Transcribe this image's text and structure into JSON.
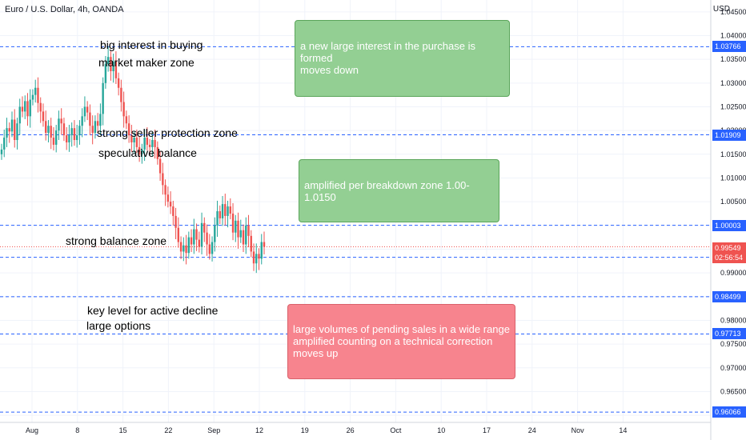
{
  "header": {
    "title": "Euro / U.S. Dollar, 4h, OANDA",
    "currency": "USD"
  },
  "chart_data": {
    "type": "candlestick",
    "symbol": "EURUSD",
    "ylim": [
      0.9585,
      1.0475
    ],
    "y_ticks": [
      "1.04500",
      "1.04000",
      "1.03500",
      "1.03000",
      "1.02500",
      "1.02000",
      "1.01500",
      "1.01000",
      "1.00500",
      "1.00000",
      "0.99500",
      "0.99000",
      "0.98500",
      "0.98000",
      "0.97500",
      "0.97000",
      "0.96500",
      "0.96000"
    ],
    "x_ticks": [
      "Aug",
      "8",
      "15",
      "22",
      "Sep",
      "12",
      "19",
      "26",
      "Oct",
      "10",
      "17",
      "24",
      "Nov",
      "14"
    ],
    "levels": [
      {
        "value": 1.03766,
        "label": "1.03766"
      },
      {
        "value": 1.01909,
        "label": "1.01909"
      },
      {
        "value": 1.00003,
        "label": "1.00003"
      },
      {
        "value": 0.99329,
        "label": "0.99329"
      },
      {
        "value": 0.98499,
        "label": "0.98499"
      },
      {
        "value": 0.97713,
        "label": "0.97713"
      },
      {
        "value": 0.96066,
        "label": "0.96066"
      }
    ],
    "last_price": {
      "value": 0.99549,
      "label": "0.99549",
      "countdown": "02:56:54"
    },
    "candle_closes": [
      1.016,
      1.0185,
      1.0205,
      1.0198,
      1.0223,
      1.018,
      1.0215,
      1.025,
      1.024,
      1.0262,
      1.023,
      1.0265,
      1.0275,
      1.029,
      1.0258,
      1.024,
      1.022,
      1.0195,
      1.021,
      1.0185,
      1.017,
      1.02,
      1.0225,
      1.0215,
      1.019,
      1.0175,
      1.019,
      1.0205,
      1.018,
      1.019,
      1.021,
      1.023,
      1.025,
      1.0238,
      1.021,
      1.0195,
      1.022,
      1.021,
      1.0235,
      1.03,
      1.034,
      1.0355,
      1.0325,
      1.0345,
      1.031,
      1.029,
      1.026,
      1.023,
      1.0215,
      1.019,
      1.0175,
      1.0185,
      1.0165,
      1.015,
      1.016,
      1.0185,
      1.017,
      1.0165,
      1.018,
      1.0165,
      1.014,
      1.011,
      1.0085,
      1.0065,
      1.005,
      1.004,
      1.002,
      0.9995,
      0.9965,
      0.9945,
      0.9958,
      0.9942,
      0.9975,
      0.996,
      0.9992,
      0.997,
      0.9955,
      1.0005,
      0.9985,
      0.996,
      0.994,
      0.9965,
      1.0,
      1.003,
      1.0015,
      1.0045,
      1.002,
      1.004,
      1.0025,
      0.9985,
      1.001,
      0.9975,
      0.999,
      0.996,
      1.0,
      0.9978,
      0.9945,
      0.992,
      0.994,
      0.993,
      0.9965,
      0.9955
    ]
  },
  "annotations": {
    "big_interest": "big interest in buying",
    "market_maker": "market maker zone",
    "seller_protection": "strong seller protection zone",
    "speculative": "speculative balance",
    "strong_balance": "strong balance zone",
    "key_level": "key level for active decline",
    "large_options": "large options"
  },
  "notes": {
    "purchase_1": "a new large interest in the purchase is formed",
    "purchase_2": "moves down",
    "breakdown": "amplified per breakdown zone 1.00-1.0150",
    "sales_1": "large volumes of pending sales in a wide range",
    "sales_2": "amplified counting on a technical correction",
    "sales_3": "moves up"
  },
  "colors": {
    "up": "#26a69a",
    "down": "#ef5350",
    "level": "#2962ff",
    "grid": "#f0f3fa"
  }
}
